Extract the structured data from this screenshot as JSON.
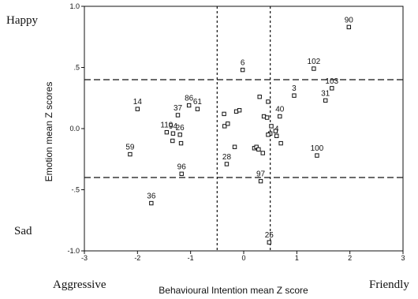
{
  "chart_data": {
    "type": "scatter",
    "xlabel": "Behavioural Intention mean Z score",
    "ylabel": "Emotion mean Z scores",
    "xlim": [
      -3,
      3
    ],
    "ylim": [
      -1.0,
      1.0
    ],
    "x_ticks": [
      "-3",
      "-2",
      "-1",
      "0",
      "1",
      "2",
      "3"
    ],
    "y_ticks": [
      "-1.0",
      "-.5",
      "0.0",
      ".5",
      "1.0"
    ],
    "grid": false,
    "reference_lines": {
      "vertical_x": [
        -0.5,
        0.5
      ],
      "horizontal_y": [
        -0.4,
        0.4
      ]
    },
    "corner_labels": {
      "top_left": "Happy",
      "middle_left": "Sad",
      "bottom_left": "Aggressive",
      "bottom_right": "Friendly"
    },
    "points": [
      {
        "label": "90",
        "x": 1.98,
        "y": 0.83
      },
      {
        "label": "102",
        "x": 1.32,
        "y": 0.49
      },
      {
        "label": "6",
        "x": -0.02,
        "y": 0.48
      },
      {
        "label": "103",
        "x": 1.66,
        "y": 0.33
      },
      {
        "label": "31",
        "x": 1.54,
        "y": 0.23
      },
      {
        "label": "3",
        "x": 0.95,
        "y": 0.27
      },
      {
        "label": "40",
        "x": 0.68,
        "y": 0.1
      },
      {
        "label": "86",
        "x": -1.03,
        "y": 0.19
      },
      {
        "label": "61",
        "x": -0.87,
        "y": 0.16
      },
      {
        "label": "37",
        "x": -1.24,
        "y": 0.11
      },
      {
        "label": "14",
        "x": -2.0,
        "y": 0.16
      },
      {
        "label": "110",
        "x": -1.45,
        "y": -0.03
      },
      {
        "label": "94",
        "x": -1.33,
        "y": -0.04
      },
      {
        "label": "26",
        "x": -1.2,
        "y": -0.05
      },
      {
        "label": "59",
        "x": -2.14,
        "y": -0.21
      },
      {
        "label": "100",
        "x": 1.38,
        "y": -0.22
      },
      {
        "label": "4",
        "x": 0.62,
        "y": -0.06
      },
      {
        "label": "28",
        "x": -0.32,
        "y": -0.29
      },
      {
        "label": "96",
        "x": -1.17,
        "y": -0.37
      },
      {
        "label": "97",
        "x": 0.32,
        "y": -0.43
      },
      {
        "label": "36",
        "x": -1.74,
        "y": -0.61
      },
      {
        "label": "25",
        "x": 0.48,
        "y": -0.93
      },
      {
        "label": "",
        "x": -1.34,
        "y": -0.1
      },
      {
        "label": "",
        "x": -1.18,
        "y": -0.12
      },
      {
        "label": "",
        "x": -0.37,
        "y": 0.12
      },
      {
        "label": "",
        "x": -0.36,
        "y": 0.02
      },
      {
        "label": "",
        "x": -0.3,
        "y": 0.04
      },
      {
        "label": "",
        "x": -0.14,
        "y": 0.14
      },
      {
        "label": "",
        "x": -0.08,
        "y": 0.15
      },
      {
        "label": "",
        "x": -0.17,
        "y": -0.15
      },
      {
        "label": "",
        "x": 0.3,
        "y": 0.26
      },
      {
        "label": "",
        "x": 0.38,
        "y": 0.1
      },
      {
        "label": "",
        "x": 0.46,
        "y": 0.22
      },
      {
        "label": "",
        "x": 0.44,
        "y": 0.09
      },
      {
        "label": "",
        "x": 0.52,
        "y": 0.02
      },
      {
        "label": "",
        "x": 0.5,
        "y": -0.04
      },
      {
        "label": "",
        "x": 0.6,
        "y": -0.02
      },
      {
        "label": "",
        "x": 0.7,
        "y": -0.12
      },
      {
        "label": "",
        "x": 0.2,
        "y": -0.16
      },
      {
        "label": "",
        "x": 0.24,
        "y": -0.15
      },
      {
        "label": "",
        "x": 0.28,
        "y": -0.17
      },
      {
        "label": "",
        "x": 0.36,
        "y": -0.2
      },
      {
        "label": "",
        "x": 0.46,
        "y": -0.05
      }
    ]
  }
}
